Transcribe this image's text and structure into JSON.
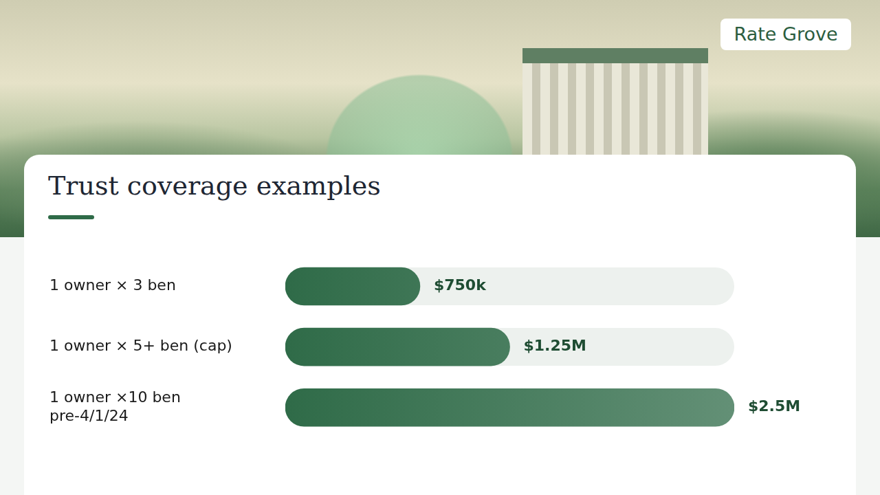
{
  "header": {
    "brand": "Rate Grove"
  },
  "chart_data": {
    "type": "bar",
    "orientation": "horizontal",
    "title": "Trust coverage examples",
    "categories": [
      "1 owner × 3 ben",
      "1 owner × 5+ ben (cap)",
      "1 owner ×10 ben pre-4/1/24"
    ],
    "values": [
      750000,
      1250000,
      2500000
    ],
    "value_labels": [
      "$750k",
      "$1.25M",
      "$2.5M"
    ],
    "data_labels": true,
    "color": "#2f6b48",
    "xlim": [
      0,
      2500000
    ],
    "grid": false,
    "tick_labels": "y"
  }
}
